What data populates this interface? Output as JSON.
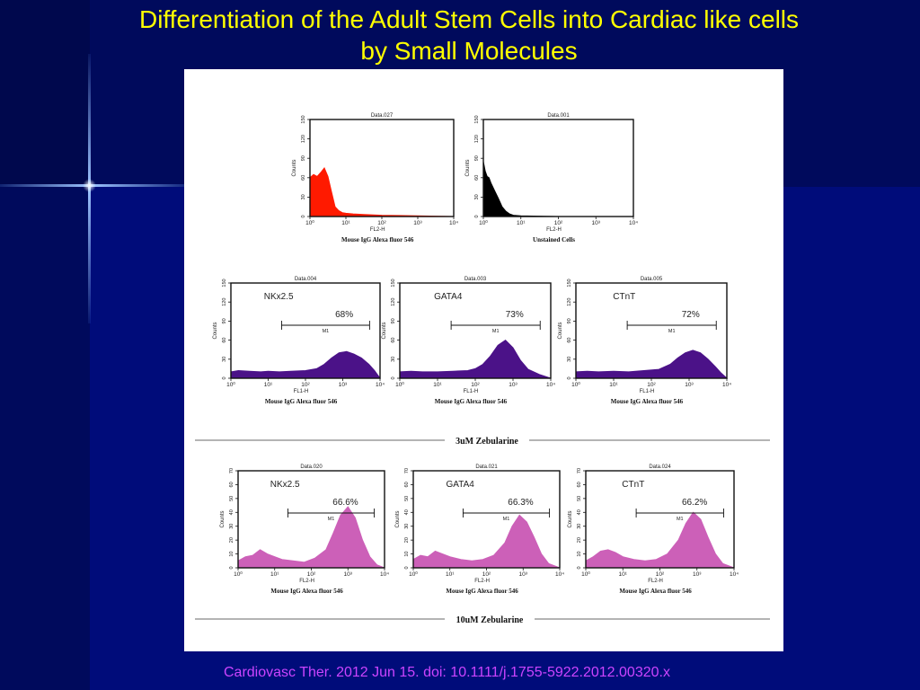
{
  "slide": {
    "title_line1": "Differentiation of the Adult Stem Cells into Cardiac like cells",
    "title_line2": "by Small Molecules",
    "citation": "Cardiovasc Ther. 2012 Jun 15. doi: 10.1111/j.1755-5922.2012.00320.x",
    "colors": {
      "background": "#000c7a",
      "title": "#ffff00",
      "citation": "#cc44ff"
    }
  },
  "figure": {
    "separator_3um": "3uM Zebularine",
    "separator_10um": "10uM Zebularine"
  },
  "chart_data": [
    {
      "type": "area",
      "id": "c1",
      "data_label": "Data.027",
      "marker": "",
      "percent": "",
      "xlabel": "FL2-H",
      "ylabel": "Counts",
      "caption": "Mouse IgG Alexa fluor 546",
      "color": "#ff1a00",
      "yticks": [
        "0",
        "30",
        "60",
        "90",
        "120",
        "150"
      ],
      "xticks": [
        "10⁰",
        "10¹",
        "10²",
        "10³",
        "10⁴"
      ],
      "ylim": [
        0,
        150
      ],
      "xlim": [
        0,
        4
      ],
      "x": [
        0,
        0.1,
        0.2,
        0.3,
        0.4,
        0.5,
        0.6,
        0.7,
        0.8,
        0.9,
        1.0,
        1.2,
        1.5,
        2.0,
        2.5,
        3.0,
        3.5,
        4.0
      ],
      "y": [
        60,
        65,
        62,
        68,
        75,
        62,
        38,
        15,
        9,
        6,
        5,
        4,
        3,
        2,
        1.5,
        1,
        0.5,
        0
      ]
    },
    {
      "type": "area",
      "id": "c2",
      "data_label": "Data.001",
      "marker": "",
      "percent": "",
      "xlabel": "FL2-H",
      "ylabel": "Counts",
      "caption": "Unstained Cells",
      "color": "#000000",
      "yticks": [
        "0",
        "30",
        "60",
        "90",
        "120",
        "150"
      ],
      "xticks": [
        "10⁰",
        "10¹",
        "10²",
        "10³",
        "10⁴"
      ],
      "ylim": [
        0,
        150
      ],
      "xlim": [
        0,
        4
      ],
      "x": [
        0,
        0.05,
        0.1,
        0.15,
        0.2,
        0.3,
        0.4,
        0.5,
        0.6,
        0.7,
        0.8,
        1.0,
        1.5,
        2.0,
        3.0,
        4.0
      ],
      "y": [
        85,
        70,
        62,
        60,
        52,
        40,
        28,
        15,
        8,
        4,
        2,
        1,
        0.5,
        0,
        0,
        0
      ]
    },
    {
      "type": "area",
      "id": "c3",
      "data_label": "Data.004",
      "marker": "NKx2.5",
      "percent": "68%",
      "xlabel": "FL1-H",
      "ylabel": "Counts",
      "caption": "Mouse IgG Alexa fluor 546",
      "color": "#4b1288",
      "yticks": [
        "0",
        "30",
        "60",
        "90",
        "120",
        "150"
      ],
      "xticks": [
        "10⁰",
        "10¹",
        "10²",
        "10³",
        "10⁴"
      ],
      "ylim": [
        0,
        150
      ],
      "xlim": [
        0,
        4
      ],
      "x": [
        0,
        0.2,
        0.5,
        0.8,
        1.0,
        1.3,
        1.6,
        2.0,
        2.3,
        2.5,
        2.7,
        2.9,
        3.1,
        3.3,
        3.5,
        3.7,
        3.85,
        4.0
      ],
      "y": [
        10,
        12,
        11,
        10,
        11,
        10,
        11,
        12,
        15,
        22,
        32,
        40,
        42,
        38,
        32,
        22,
        12,
        0
      ]
    },
    {
      "type": "area",
      "id": "c4",
      "data_label": "Data.003",
      "marker": "GATA4",
      "percent": "73%",
      "xlabel": "FL1-H",
      "ylabel": "Counts",
      "caption": "Mouse IgG Alexa fluor 546",
      "color": "#4b1288",
      "yticks": [
        "0",
        "30",
        "60",
        "90",
        "120",
        "150"
      ],
      "xticks": [
        "10⁰",
        "10¹",
        "10²",
        "10³",
        "10⁴"
      ],
      "ylim": [
        0,
        150
      ],
      "xlim": [
        0,
        4
      ],
      "x": [
        0,
        0.3,
        0.6,
        1.0,
        1.4,
        1.8,
        2.0,
        2.2,
        2.4,
        2.6,
        2.8,
        3.0,
        3.2,
        3.4,
        3.7,
        4.0
      ],
      "y": [
        10,
        11,
        10,
        10,
        11,
        12,
        15,
        22,
        35,
        52,
        60,
        48,
        28,
        14,
        6,
        0
      ]
    },
    {
      "type": "area",
      "id": "c5",
      "data_label": "Data.005",
      "marker": "CTnT",
      "percent": "72%",
      "xlabel": "FL1-H",
      "ylabel": "Counts",
      "caption": "Mouse IgG Alexa fluor 546",
      "color": "#4b1288",
      "yticks": [
        "0",
        "30",
        "60",
        "90",
        "120",
        "150"
      ],
      "xticks": [
        "10⁰",
        "10¹",
        "10²",
        "10³",
        "10⁴"
      ],
      "ylim": [
        0,
        150
      ],
      "xlim": [
        0,
        4
      ],
      "x": [
        0,
        0.3,
        0.6,
        1.0,
        1.4,
        1.8,
        2.2,
        2.5,
        2.7,
        2.9,
        3.1,
        3.3,
        3.5,
        3.7,
        3.85,
        4.0
      ],
      "y": [
        10,
        11,
        10,
        11,
        10,
        12,
        14,
        22,
        32,
        40,
        44,
        40,
        30,
        18,
        8,
        0
      ]
    },
    {
      "type": "area",
      "id": "c6",
      "data_label": "Data.020",
      "marker": "NKx2.5",
      "percent": "66.6%",
      "xlabel": "FL2-H",
      "ylabel": "Counts",
      "caption": "Mouse IgG Alexa fluor 546",
      "color": "#cc60b8",
      "yticks": [
        "0",
        "10",
        "20",
        "30",
        "40",
        "50",
        "60",
        "70"
      ],
      "xticks": [
        "10⁰",
        "10¹",
        "10²",
        "10³",
        "10⁴"
      ],
      "ylim": [
        0,
        70
      ],
      "xlim": [
        0,
        4
      ],
      "x": [
        0,
        0.2,
        0.4,
        0.6,
        0.8,
        1.0,
        1.2,
        1.5,
        1.8,
        2.1,
        2.4,
        2.6,
        2.8,
        3.0,
        3.2,
        3.4,
        3.6,
        3.8,
        4.0
      ],
      "y": [
        5,
        8,
        9,
        13,
        10,
        8,
        6,
        5,
        4,
        7,
        13,
        25,
        38,
        44,
        36,
        20,
        8,
        2,
        0
      ]
    },
    {
      "type": "area",
      "id": "c7",
      "data_label": "Data.021",
      "marker": "GATA4",
      "percent": "66.3%",
      "xlabel": "FL2-H",
      "ylabel": "Counts",
      "caption": "Mouse IgG Alexa fluor 546",
      "color": "#cc60b8",
      "yticks": [
        "0",
        "10",
        "20",
        "30",
        "40",
        "50",
        "60",
        "70"
      ],
      "xticks": [
        "10⁰",
        "10¹",
        "10²",
        "10³",
        "10⁴"
      ],
      "ylim": [
        0,
        70
      ],
      "xlim": [
        0,
        4
      ],
      "x": [
        0,
        0.2,
        0.4,
        0.6,
        0.8,
        1.0,
        1.3,
        1.6,
        1.9,
        2.2,
        2.5,
        2.7,
        2.9,
        3.1,
        3.3,
        3.5,
        3.7,
        4.0
      ],
      "y": [
        6,
        9,
        8,
        12,
        10,
        8,
        6,
        5,
        6,
        9,
        18,
        30,
        38,
        33,
        22,
        10,
        3,
        0
      ]
    },
    {
      "type": "area",
      "id": "c8",
      "data_label": "Data.024",
      "marker": "CTnT",
      "percent": "66.2%",
      "xlabel": "FL2-H",
      "ylabel": "Counts",
      "caption": "Mouse IgG Alexa fluor 546",
      "color": "#cc60b8",
      "yticks": [
        "0",
        "10",
        "20",
        "30",
        "40",
        "50",
        "60",
        "70"
      ],
      "xticks": [
        "10⁰",
        "10¹",
        "10²",
        "10³",
        "10⁴"
      ],
      "ylim": [
        0,
        70
      ],
      "xlim": [
        0,
        4
      ],
      "x": [
        0,
        0.2,
        0.4,
        0.6,
        0.8,
        1.0,
        1.3,
        1.6,
        1.9,
        2.2,
        2.5,
        2.7,
        2.9,
        3.1,
        3.3,
        3.5,
        3.7,
        4.0
      ],
      "y": [
        5,
        8,
        12,
        13,
        11,
        8,
        6,
        5,
        6,
        10,
        20,
        32,
        40,
        35,
        22,
        10,
        3,
        0
      ]
    }
  ]
}
